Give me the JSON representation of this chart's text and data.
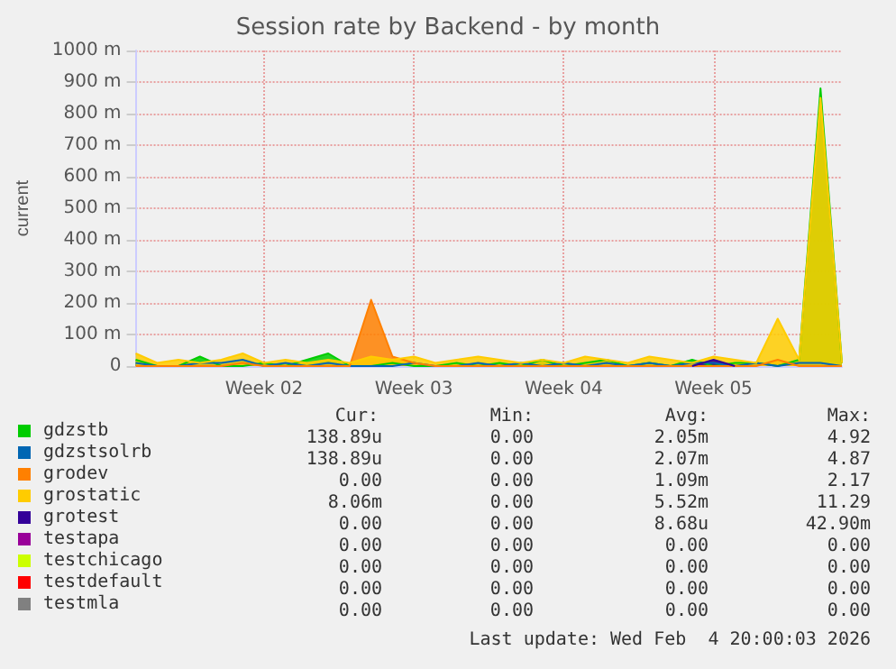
{
  "chart_data": {
    "type": "area",
    "title": "Session rate by Backend - by month",
    "ylabel": "current",
    "categories": [
      null,
      null,
      null,
      null,
      null,
      null,
      "Week 02",
      null,
      null,
      null,
      null,
      null,
      null,
      "Week 03",
      null,
      null,
      null,
      null,
      null,
      null,
      "Week 04",
      null,
      null,
      null,
      null,
      null,
      null,
      "Week 05",
      null,
      null,
      null,
      null,
      null,
      null
    ],
    "series": [
      {
        "name": "gdzstb",
        "color": "#00cc00",
        "values": [
          20,
          0,
          0,
          30,
          0,
          0,
          10,
          0,
          20,
          40,
          0,
          0,
          10,
          0,
          0,
          10,
          0,
          10,
          0,
          20,
          0,
          10,
          20,
          0,
          10,
          0,
          20,
          0,
          10,
          10,
          0,
          20,
          880,
          10
        ]
      },
      {
        "name": "gdzstsolrb",
        "color": "#0066b3",
        "values": [
          10,
          0,
          0,
          10,
          10,
          20,
          0,
          10,
          0,
          10,
          0,
          0,
          0,
          10,
          0,
          0,
          10,
          0,
          10,
          0,
          10,
          0,
          10,
          0,
          10,
          0,
          10,
          10,
          0,
          10,
          0,
          10,
          10,
          0
        ]
      },
      {
        "name": "grodev",
        "color": "#ff8000",
        "values": [
          0,
          0,
          0,
          0,
          0,
          10,
          0,
          0,
          0,
          0,
          0,
          210,
          30,
          10,
          0,
          0,
          0,
          0,
          0,
          0,
          0,
          0,
          0,
          0,
          0,
          0,
          0,
          0,
          0,
          0,
          20,
          0,
          0,
          0
        ]
      },
      {
        "name": "grostatic",
        "color": "#ffcc00",
        "values": [
          40,
          10,
          20,
          10,
          20,
          40,
          10,
          20,
          10,
          20,
          10,
          30,
          20,
          30,
          10,
          20,
          30,
          20,
          10,
          20,
          10,
          30,
          20,
          10,
          30,
          20,
          10,
          30,
          20,
          10,
          150,
          20,
          850,
          10
        ]
      },
      {
        "name": "grotest",
        "color": "#330099",
        "values": [
          null,
          null,
          null,
          null,
          null,
          null,
          null,
          null,
          null,
          null,
          null,
          null,
          null,
          null,
          null,
          null,
          null,
          null,
          null,
          null,
          null,
          null,
          null,
          null,
          null,
          null,
          0,
          20,
          0,
          null,
          null,
          null,
          null,
          null
        ]
      },
      {
        "name": "testapa",
        "color": "#990099",
        "values": [
          null,
          null,
          null,
          null,
          null,
          null,
          null,
          null,
          null,
          null,
          null,
          null,
          null,
          null,
          null,
          null,
          null,
          null,
          null,
          null,
          null,
          null,
          null,
          null,
          null,
          null,
          null,
          null,
          null,
          null,
          null,
          null,
          null,
          null
        ]
      },
      {
        "name": "testchicago",
        "color": "#ccff00",
        "values": [
          null,
          null,
          null,
          null,
          null,
          null,
          null,
          null,
          null,
          null,
          null,
          null,
          null,
          null,
          null,
          null,
          null,
          null,
          null,
          null,
          null,
          null,
          null,
          null,
          null,
          null,
          null,
          null,
          null,
          null,
          null,
          null,
          null,
          null
        ]
      },
      {
        "name": "testdefault",
        "color": "#ff0000",
        "values": [
          null,
          null,
          null,
          null,
          null,
          null,
          null,
          null,
          null,
          null,
          null,
          null,
          null,
          null,
          null,
          null,
          null,
          null,
          null,
          null,
          null,
          null,
          null,
          null,
          null,
          null,
          null,
          null,
          null,
          null,
          null,
          null,
          null,
          null
        ]
      },
      {
        "name": "testmla",
        "color": "#808080",
        "values": [
          null,
          null,
          null,
          null,
          null,
          null,
          null,
          null,
          null,
          null,
          null,
          null,
          null,
          null,
          null,
          null,
          null,
          null,
          null,
          null,
          null,
          null,
          null,
          null,
          null,
          null,
          null,
          null,
          null,
          null,
          null,
          null,
          null,
          null
        ]
      }
    ],
    "ylim": [
      0,
      1000
    ],
    "yticks": [
      0,
      {
        "value": 100,
        "label": "100 m"
      },
      {
        "value": 200,
        "label": "200 m"
      },
      {
        "value": 300,
        "label": "300 m"
      },
      {
        "value": 400,
        "label": "400 m"
      },
      {
        "value": 500,
        "label": "500 m"
      },
      {
        "value": 600,
        "label": "600 m"
      },
      {
        "value": 700,
        "label": "700 m"
      },
      {
        "value": 800,
        "label": "800 m"
      },
      {
        "value": 900,
        "label": "900 m"
      },
      {
        "value": 1000,
        "label": "1000 m"
      }
    ],
    "grid": true,
    "legend": "bottom left",
    "annotations": [
      "Cur:",
      "Min:",
      "Avg:",
      "Max:",
      "138.89u",
      "0.00",
      "2.05m",
      "4.92",
      "138.89u",
      "0.00",
      "2.07m",
      "4.87",
      "0.00",
      "0.00",
      "1.09m",
      "2.17",
      "8.06m",
      "0.00",
      "5.52m",
      "11.29",
      "0.00",
      "0.00",
      "8.68u",
      "42.90m",
      "0.00",
      "0.00",
      "0.00",
      "0.00",
      "0.00",
      "0.00",
      "0.00",
      "0.00",
      "0.00",
      "0.00",
      "0.00",
      "0.00",
      "0.00",
      "0.00",
      "0.00",
      "0.00",
      "Last update: Wed Feb  4 20:00:03 2026"
    ]
  }
}
